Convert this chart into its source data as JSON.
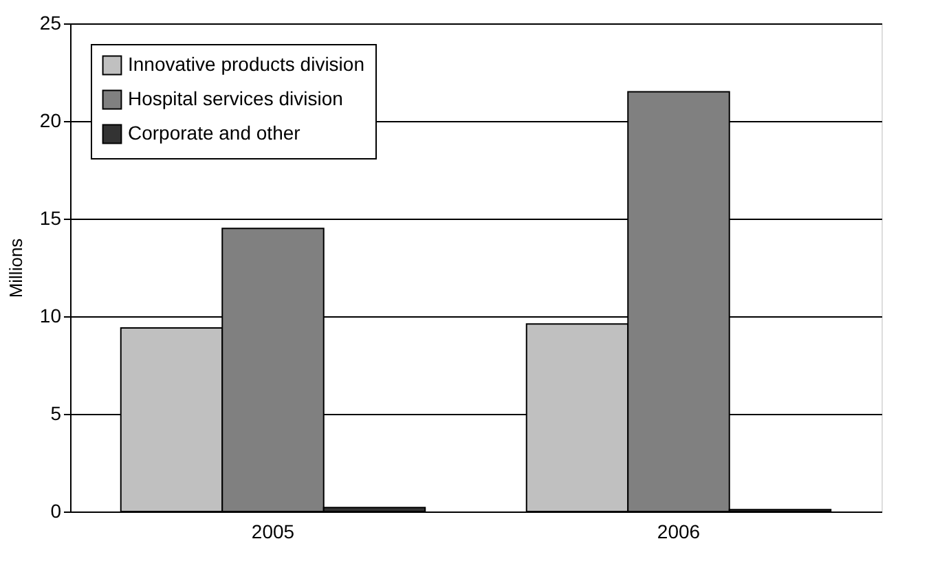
{
  "chart_data": {
    "type": "bar",
    "ylabel": "Millions",
    "categories": [
      "2005",
      "2006"
    ],
    "series": [
      {
        "name": "Innovative products division",
        "color": "#c0c0c0",
        "values": [
          9.4,
          9.6
        ]
      },
      {
        "name": "Hospital services division",
        "color": "#808080",
        "values": [
          14.5,
          21.5
        ]
      },
      {
        "name": "Corporate and other",
        "color": "#333333",
        "values": [
          0.2,
          0.1
        ]
      }
    ],
    "ylim": [
      0,
      25
    ],
    "yticks": [
      0,
      5,
      10,
      15,
      20,
      25
    ],
    "grid": "y",
    "legend": "top left"
  }
}
